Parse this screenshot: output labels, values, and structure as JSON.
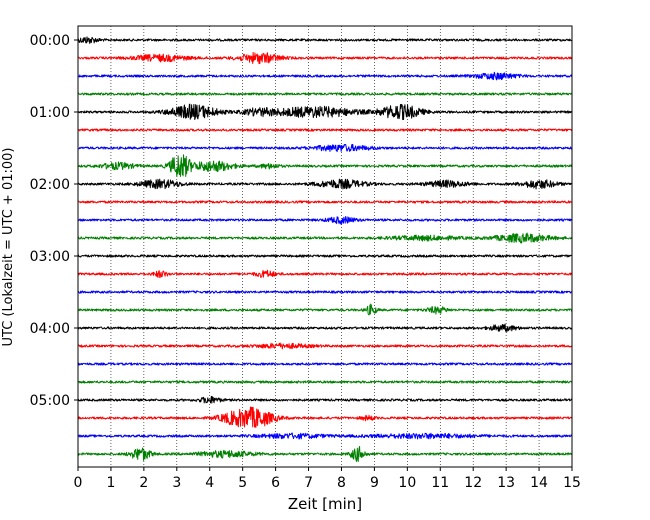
{
  "chart_data": {
    "type": "line",
    "title": "",
    "xlabel": "Zeit  [min]",
    "ylabel": "UTC (Lokalzeit = UTC + 01:00)",
    "xlim": [
      0,
      15
    ],
    "x_ticks": [
      "0",
      "1",
      "2",
      "3",
      "4",
      "5",
      "6",
      "7",
      "8",
      "9",
      "10",
      "11",
      "12",
      "13",
      "14",
      "15"
    ],
    "y_tick_labels": [
      "00:00",
      "01:00",
      "02:00",
      "03:00",
      "04:00",
      "05:00"
    ],
    "grid": "x-dotted",
    "colors": [
      "#000000",
      "#ff0000",
      "#0000ff",
      "#008000"
    ],
    "series": [
      {
        "start": "00:00",
        "color": "#000000",
        "bursts": [
          {
            "t": 0.3,
            "a": 3,
            "w": 0.3
          }
        ]
      },
      {
        "start": "00:15",
        "color": "#ff0000",
        "bursts": [
          {
            "t": 2.5,
            "a": 3,
            "w": 0.8
          },
          {
            "t": 5.5,
            "a": 5,
            "w": 0.6
          }
        ]
      },
      {
        "start": "00:30",
        "color": "#0000ff",
        "bursts": [
          {
            "t": 12.7,
            "a": 3,
            "w": 0.6
          }
        ]
      },
      {
        "start": "00:45",
        "color": "#008000",
        "bursts": []
      },
      {
        "start": "01:00",
        "color": "#000000",
        "bursts": [
          {
            "t": 3.5,
            "a": 7,
            "w": 0.7
          },
          {
            "t": 5.5,
            "a": 3,
            "w": 0.5
          },
          {
            "t": 7.2,
            "a": 5,
            "w": 1.2
          },
          {
            "t": 9.8,
            "a": 7,
            "w": 0.6
          }
        ]
      },
      {
        "start": "01:15",
        "color": "#ff0000",
        "bursts": []
      },
      {
        "start": "01:30",
        "color": "#0000ff",
        "bursts": [
          {
            "t": 8.0,
            "a": 3,
            "w": 0.8
          }
        ]
      },
      {
        "start": "01:45",
        "color": "#008000",
        "bursts": [
          {
            "t": 1.2,
            "a": 3,
            "w": 0.5
          },
          {
            "t": 3.1,
            "a": 12,
            "w": 0.3
          },
          {
            "t": 4.1,
            "a": 5,
            "w": 0.6
          },
          {
            "t": 5.8,
            "a": 2,
            "w": 0.3
          }
        ]
      },
      {
        "start": "02:00",
        "color": "#000000",
        "bursts": [
          {
            "t": 2.5,
            "a": 4,
            "w": 0.6
          },
          {
            "t": 8.0,
            "a": 4,
            "w": 0.7
          },
          {
            "t": 11.2,
            "a": 3,
            "w": 0.6
          },
          {
            "t": 14.0,
            "a": 4,
            "w": 0.5
          }
        ]
      },
      {
        "start": "02:15",
        "color": "#ff0000",
        "bursts": []
      },
      {
        "start": "02:30",
        "color": "#0000ff",
        "bursts": [
          {
            "t": 8.0,
            "a": 3,
            "w": 0.4
          }
        ]
      },
      {
        "start": "02:45",
        "color": "#008000",
        "bursts": [
          {
            "t": 10.5,
            "a": 2,
            "w": 1.0
          },
          {
            "t": 13.5,
            "a": 4,
            "w": 0.8
          }
        ]
      },
      {
        "start": "03:00",
        "color": "#000000",
        "bursts": []
      },
      {
        "start": "03:15",
        "color": "#ff0000",
        "bursts": [
          {
            "t": 2.5,
            "a": 3,
            "w": 0.2
          },
          {
            "t": 5.7,
            "a": 3,
            "w": 0.3
          }
        ]
      },
      {
        "start": "03:30",
        "color": "#0000ff",
        "bursts": []
      },
      {
        "start": "03:45",
        "color": "#008000",
        "bursts": [
          {
            "t": 8.9,
            "a": 5,
            "w": 0.15
          },
          {
            "t": 10.9,
            "a": 3,
            "w": 0.3
          }
        ]
      },
      {
        "start": "04:00",
        "color": "#000000",
        "bursts": [
          {
            "t": 12.9,
            "a": 3,
            "w": 0.4
          }
        ]
      },
      {
        "start": "04:15",
        "color": "#ff0000",
        "bursts": [
          {
            "t": 6.2,
            "a": 2,
            "w": 0.8
          }
        ]
      },
      {
        "start": "04:30",
        "color": "#0000ff",
        "bursts": []
      },
      {
        "start": "04:45",
        "color": "#008000",
        "bursts": []
      },
      {
        "start": "05:00",
        "color": "#000000",
        "bursts": [
          {
            "t": 4.0,
            "a": 3,
            "w": 0.3
          }
        ]
      },
      {
        "start": "05:15",
        "color": "#ff0000",
        "bursts": [
          {
            "t": 5.3,
            "a": 10,
            "w": 0.6
          },
          {
            "t": 4.6,
            "a": 3,
            "w": 0.4
          },
          {
            "t": 8.8,
            "a": 2,
            "w": 0.2
          }
        ]
      },
      {
        "start": "05:30",
        "color": "#0000ff",
        "bursts": [
          {
            "t": 6.5,
            "a": 2,
            "w": 1.0
          },
          {
            "t": 10.5,
            "a": 2,
            "w": 1.5
          }
        ]
      },
      {
        "start": "05:45",
        "color": "#008000",
        "bursts": [
          {
            "t": 1.9,
            "a": 6,
            "w": 0.3
          },
          {
            "t": 4.5,
            "a": 3,
            "w": 0.8
          },
          {
            "t": 8.5,
            "a": 7,
            "w": 0.2
          }
        ]
      }
    ]
  }
}
